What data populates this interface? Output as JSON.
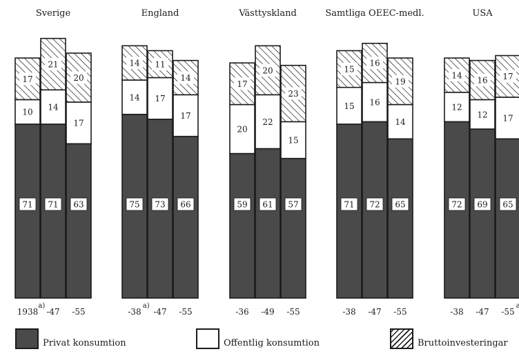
{
  "chart_data": {
    "type": "bar",
    "stacked": true,
    "xlabel": "",
    "ylabel": "",
    "ylim": [
      0,
      100
    ],
    "units": "percent",
    "series": [
      {
        "key": "privat",
        "name": "Privat konsumtion"
      },
      {
        "key": "offentlig",
        "name": "Offentlig konsumtion"
      },
      {
        "key": "brutto",
        "name": "Bruttoinvesteringar"
      }
    ],
    "groups": [
      {
        "name": "Sverige",
        "bars": [
          {
            "label": "1938",
            "superscript": "a)",
            "privat": 71,
            "offentlig": 10,
            "brutto": 17
          },
          {
            "label": "-47",
            "superscript": "",
            "privat": 71,
            "offentlig": 14,
            "brutto": 21
          },
          {
            "label": "-55",
            "superscript": "",
            "privat": 63,
            "offentlig": 17,
            "brutto": 20
          }
        ]
      },
      {
        "name": "England",
        "bars": [
          {
            "label": "-38",
            "superscript": "a)",
            "privat": 75,
            "offentlig": 14,
            "brutto": 14
          },
          {
            "label": "-47",
            "superscript": "",
            "privat": 73,
            "offentlig": 17,
            "brutto": 11
          },
          {
            "label": "-55",
            "superscript": "",
            "privat": 66,
            "offentlig": 17,
            "brutto": 14
          }
        ]
      },
      {
        "name": "Västtyskland",
        "bars": [
          {
            "label": "-36",
            "superscript": "",
            "privat": 59,
            "offentlig": 20,
            "brutto": 17
          },
          {
            "label": "-49",
            "superscript": "",
            "privat": 61,
            "offentlig": 22,
            "brutto": 20
          },
          {
            "label": "-55",
            "superscript": "",
            "privat": 57,
            "offentlig": 15,
            "brutto": 23
          }
        ]
      },
      {
        "name": "Samtliga OEEC-medl.",
        "bars": [
          {
            "label": "-38",
            "superscript": "",
            "privat": 71,
            "offentlig": 15,
            "brutto": 15
          },
          {
            "label": "-47",
            "superscript": "",
            "privat": 72,
            "offentlig": 16,
            "brutto": 16
          },
          {
            "label": "-55",
            "superscript": "",
            "privat": 65,
            "offentlig": 14,
            "brutto": 19
          }
        ]
      },
      {
        "name": "USA",
        "bars": [
          {
            "label": "-38",
            "superscript": "",
            "privat": 72,
            "offentlig": 12,
            "brutto": 14
          },
          {
            "label": "-47",
            "superscript": "",
            "privat": 69,
            "offentlig": 12,
            "brutto": 16
          },
          {
            "label": "-55",
            "superscript": "a",
            "privat": 65,
            "offentlig": 17,
            "brutto": 17
          }
        ]
      }
    ],
    "colors": {
      "privat": "#4a4a4a",
      "offentlig": "#ffffff",
      "brutto": "hatched"
    }
  }
}
